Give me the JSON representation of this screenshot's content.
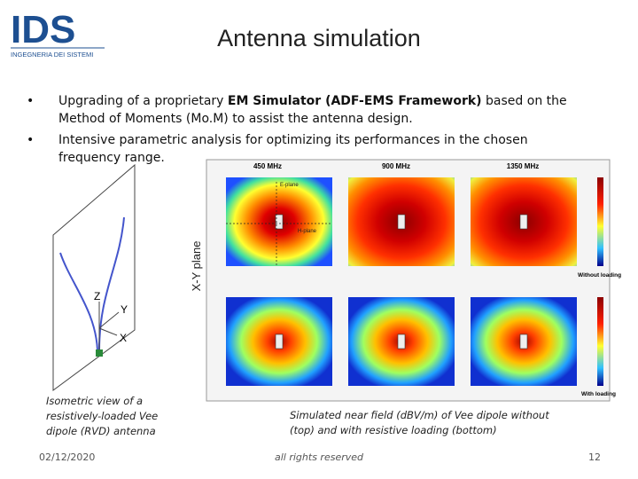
{
  "logo": {
    "name": "IDS",
    "subtitle": "INGEGNERIA DEI SISTEMI"
  },
  "header": {
    "title": "Antenna simulation"
  },
  "bullets": [
    [
      "Upgrading of a proprietary ",
      "EM Simulator (ADF-EMS Framework)",
      " based on the Method of Moments (Mo.M) to assist the antenna design."
    ],
    [
      "Intensive parametric analysis for optimizing its performances in the chosen frequency range."
    ]
  ],
  "figure": {
    "axes": [
      "Z",
      "Y",
      "X"
    ],
    "left_caption": "Isometric view of a resistively-loaded Vee dipole (RVD) antenna",
    "plane_label": "X-Y plane",
    "frequencies": [
      "450 MHz",
      "900 MHz",
      "1350 MHz"
    ],
    "e_plane": "E-plane",
    "h_plane": "H-plane",
    "row_labels": [
      "Without loading",
      "With loading"
    ],
    "right_caption": "Simulated near field (dBV/m) of Vee dipole without (top) and with resistive loading (bottom)"
  },
  "footer": {
    "date": "02/12/2020",
    "center": "all rights reserved",
    "page": "12"
  }
}
